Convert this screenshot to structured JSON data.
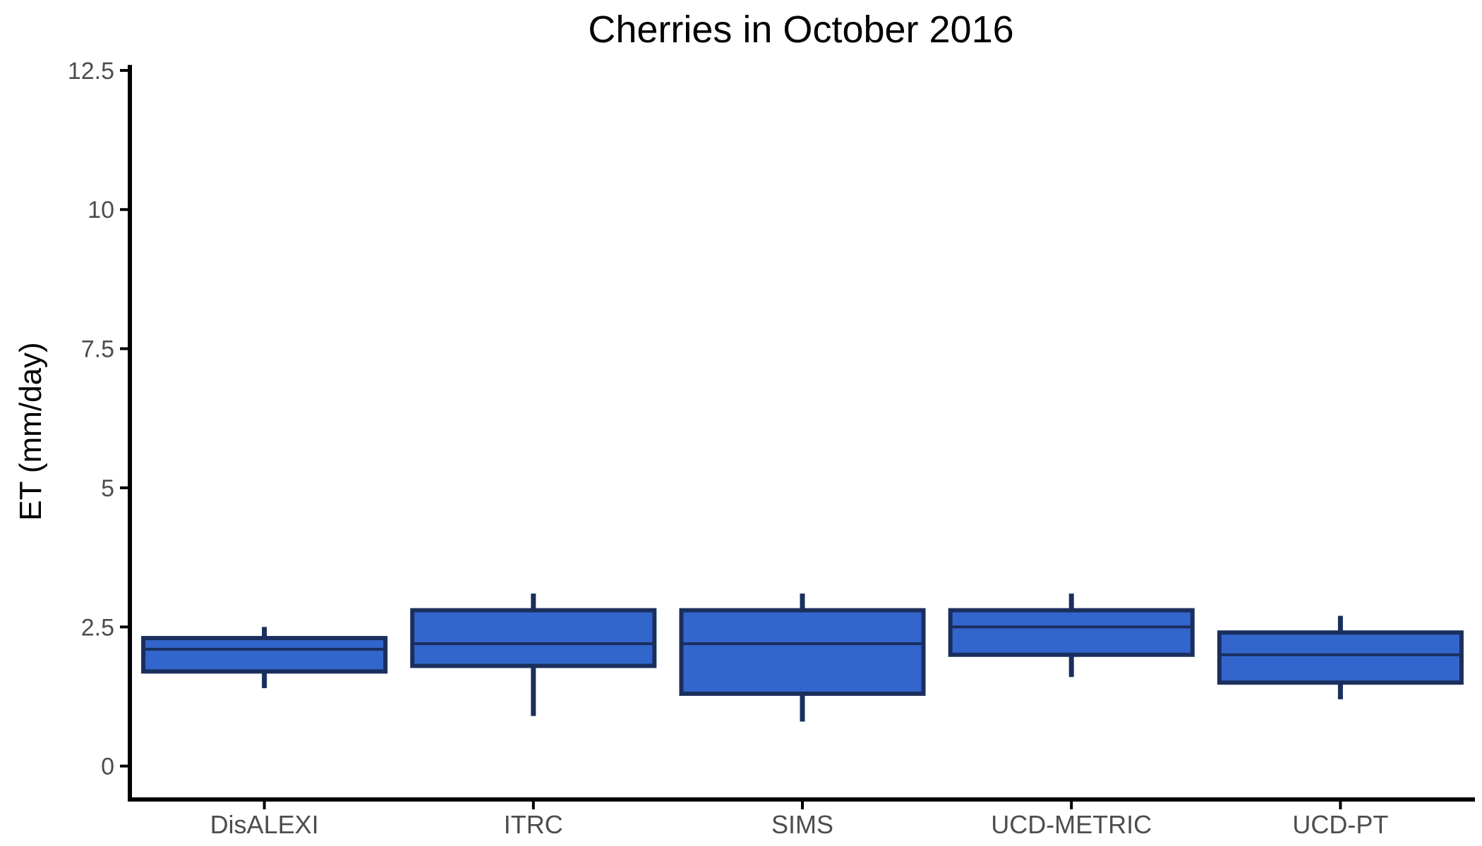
{
  "chart_data": {
    "type": "boxplot",
    "title": "Cherries in October 2016",
    "xlabel": "",
    "ylabel": "ET (mm/day)",
    "ylim": [
      -0.6,
      12.6
    ],
    "yticks": [
      0,
      2.5,
      5,
      7.5,
      10,
      12.5
    ],
    "ytick_labels": [
      "0",
      "2.5",
      "5",
      "7.5",
      "10",
      "12.5"
    ],
    "categories": [
      "DisALEXI",
      "ITRC",
      "SIMS",
      "UCD-METRIC",
      "UCD-PT"
    ],
    "boxes": [
      {
        "category": "DisALEXI",
        "whisker_low": 1.4,
        "q1": 1.7,
        "median": 2.1,
        "q3": 2.3,
        "whisker_high": 2.5
      },
      {
        "category": "ITRC",
        "whisker_low": 0.9,
        "q1": 1.8,
        "median": 2.2,
        "q3": 2.8,
        "whisker_high": 3.1
      },
      {
        "category": "SIMS",
        "whisker_low": 0.8,
        "q1": 1.3,
        "median": 2.2,
        "q3": 2.8,
        "whisker_high": 3.1
      },
      {
        "category": "UCD-METRIC",
        "whisker_low": 1.6,
        "q1": 2.0,
        "median": 2.5,
        "q3": 2.8,
        "whisker_high": 3.1
      },
      {
        "category": "UCD-PT",
        "whisker_low": 1.2,
        "q1": 1.5,
        "median": 2.0,
        "q3": 2.4,
        "whisker_high": 2.7
      }
    ],
    "colors": {
      "box_fill": "#3366cc",
      "box_stroke": "#1a2f5e",
      "axis": "#000000",
      "tick_text": "#4d4d4d"
    },
    "grid": false,
    "legend": "none"
  }
}
